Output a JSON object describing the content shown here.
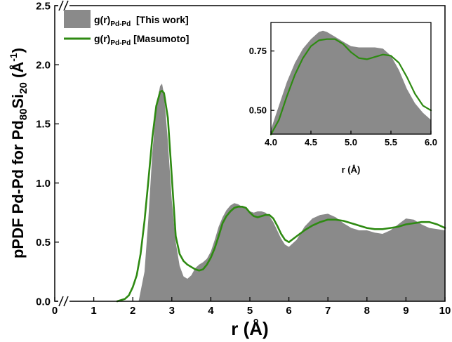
{
  "chart_data": {
    "type": "area",
    "xlabel": "r (Å)",
    "ylabel": {
      "main": "pPDF Pd-Pd for Pd",
      "sub1": "80",
      "mid": "Si",
      "sub2": "20",
      "unit": " (Å",
      "sup": "-1",
      "close": ")"
    },
    "xlim": [
      0,
      10
    ],
    "ylim": [
      0,
      2.5
    ],
    "x_ticks": [
      0,
      1,
      2,
      3,
      4,
      5,
      6,
      7,
      8,
      9,
      10
    ],
    "y_ticks": [
      0.0,
      0.5,
      1.0,
      1.5,
      2.0,
      2.5
    ],
    "x_axis_break_between": [
      0,
      2
    ],
    "legend": {
      "placement": "top-left",
      "entries": [
        {
          "base": "g(r)",
          "sub": "Pd-Pd",
          "suffix": "  [This work]"
        },
        {
          "base": "g(r)",
          "sub": "Pd-Pd",
          "suffix": " [Masumoto]"
        }
      ]
    },
    "series": [
      {
        "style": "filled-area",
        "color": "#8a8a8a",
        "x": [
          2.15,
          2.3,
          2.4,
          2.5,
          2.6,
          2.7,
          2.75,
          2.8,
          2.9,
          3.0,
          3.1,
          3.2,
          3.3,
          3.4,
          3.5,
          3.6,
          3.7,
          3.8,
          3.9,
          4.0,
          4.1,
          4.2,
          4.3,
          4.4,
          4.5,
          4.6,
          4.7,
          4.8,
          4.9,
          5.0,
          5.1,
          5.2,
          5.3,
          5.4,
          5.5,
          5.6,
          5.7,
          5.8,
          5.9,
          6.0,
          6.2,
          6.4,
          6.6,
          6.8,
          7.0,
          7.2,
          7.4,
          7.6,
          7.8,
          8.0,
          8.2,
          8.4,
          8.6,
          8.8,
          9.0,
          9.2,
          9.4,
          9.6,
          9.8,
          10.0
        ],
        "y": [
          0.0,
          0.25,
          0.7,
          1.25,
          1.65,
          1.82,
          1.84,
          1.75,
          1.35,
          0.85,
          0.5,
          0.3,
          0.21,
          0.19,
          0.22,
          0.28,
          0.31,
          0.33,
          0.36,
          0.42,
          0.52,
          0.63,
          0.71,
          0.77,
          0.81,
          0.83,
          0.82,
          0.8,
          0.78,
          0.76,
          0.75,
          0.76,
          0.76,
          0.75,
          0.72,
          0.67,
          0.6,
          0.53,
          0.48,
          0.46,
          0.52,
          0.63,
          0.7,
          0.73,
          0.74,
          0.71,
          0.66,
          0.62,
          0.6,
          0.6,
          0.58,
          0.57,
          0.6,
          0.65,
          0.7,
          0.69,
          0.65,
          0.62,
          0.61,
          0.6
        ]
      },
      {
        "style": "line",
        "color": "#2e8a12",
        "x": [
          1.6,
          1.8,
          1.9,
          2.0,
          2.1,
          2.2,
          2.3,
          2.4,
          2.5,
          2.6,
          2.7,
          2.75,
          2.8,
          2.9,
          3.0,
          3.1,
          3.2,
          3.3,
          3.4,
          3.5,
          3.6,
          3.7,
          3.8,
          3.9,
          4.0,
          4.1,
          4.2,
          4.3,
          4.4,
          4.5,
          4.6,
          4.7,
          4.8,
          4.9,
          5.0,
          5.1,
          5.2,
          5.3,
          5.4,
          5.5,
          5.6,
          5.7,
          5.8,
          5.9,
          6.0,
          6.2,
          6.4,
          6.6,
          6.8,
          7.0,
          7.2,
          7.4,
          7.6,
          7.8,
          8.0,
          8.2,
          8.4,
          8.6,
          8.8,
          9.0,
          9.2,
          9.4,
          9.6,
          9.8,
          10.0
        ],
        "y": [
          0.0,
          0.02,
          0.05,
          0.12,
          0.22,
          0.4,
          0.68,
          1.02,
          1.38,
          1.65,
          1.77,
          1.78,
          1.76,
          1.55,
          1.05,
          0.55,
          0.4,
          0.34,
          0.31,
          0.29,
          0.27,
          0.26,
          0.27,
          0.31,
          0.37,
          0.45,
          0.55,
          0.66,
          0.72,
          0.76,
          0.79,
          0.8,
          0.8,
          0.79,
          0.75,
          0.72,
          0.71,
          0.72,
          0.73,
          0.73,
          0.7,
          0.64,
          0.57,
          0.52,
          0.5,
          0.55,
          0.6,
          0.64,
          0.67,
          0.69,
          0.69,
          0.68,
          0.66,
          0.64,
          0.62,
          0.61,
          0.61,
          0.62,
          0.63,
          0.65,
          0.66,
          0.67,
          0.67,
          0.65,
          0.62
        ]
      }
    ],
    "inset": {
      "xlabel": "r (Å)",
      "xlim": [
        4.0,
        6.0
      ],
      "ylim": [
        0.4,
        0.87
      ],
      "x_ticks": [
        4.0,
        4.5,
        5.0,
        5.5,
        6.0
      ],
      "y_ticks": [
        0.5,
        0.75
      ],
      "series": [
        {
          "style": "filled-area",
          "color": "#8a8a8a",
          "x": [
            4.0,
            4.1,
            4.2,
            4.3,
            4.4,
            4.5,
            4.6,
            4.65,
            4.7,
            4.8,
            4.9,
            5.0,
            5.1,
            5.2,
            5.3,
            5.4,
            5.5,
            5.6,
            5.7,
            5.8,
            5.9,
            6.0
          ],
          "y": [
            0.42,
            0.52,
            0.62,
            0.7,
            0.76,
            0.8,
            0.83,
            0.835,
            0.83,
            0.81,
            0.79,
            0.77,
            0.765,
            0.765,
            0.765,
            0.76,
            0.73,
            0.67,
            0.59,
            0.53,
            0.49,
            0.46
          ]
        },
        {
          "style": "line",
          "color": "#2e8a12",
          "x": [
            4.0,
            4.1,
            4.2,
            4.3,
            4.4,
            4.5,
            4.6,
            4.7,
            4.8,
            4.9,
            5.0,
            5.1,
            5.2,
            5.3,
            5.4,
            5.5,
            5.6,
            5.7,
            5.8,
            5.9,
            6.0
          ],
          "y": [
            0.38,
            0.46,
            0.56,
            0.65,
            0.72,
            0.77,
            0.795,
            0.8,
            0.8,
            0.78,
            0.745,
            0.72,
            0.715,
            0.725,
            0.735,
            0.73,
            0.7,
            0.64,
            0.57,
            0.52,
            0.5
          ]
        }
      ]
    }
  }
}
